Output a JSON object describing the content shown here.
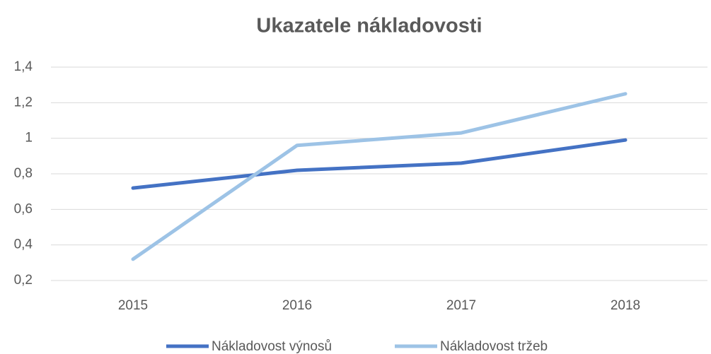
{
  "chart_data": {
    "type": "line",
    "title": "Ukazatele nákladovosti",
    "categories": [
      "2015",
      "2016",
      "2017",
      "2018"
    ],
    "series": [
      {
        "name": "Nákladovost výnosů",
        "color": "#4472c4",
        "values": [
          0.72,
          0.82,
          0.86,
          0.99
        ]
      },
      {
        "name": "Nákladovost tržeb",
        "color": "#9dc3e6",
        "values": [
          0.32,
          0.96,
          1.03,
          1.25
        ]
      }
    ],
    "ylim": [
      0.2,
      1.4
    ],
    "yticks": [
      {
        "value": 0.2,
        "label": "0,2"
      },
      {
        "value": 0.4,
        "label": "0,4"
      },
      {
        "value": 0.6,
        "label": "0,6"
      },
      {
        "value": 0.8,
        "label": "0,8"
      },
      1,
      {
        "value": 1.2,
        "label": "1,2"
      },
      {
        "value": 1.4,
        "label": "1,4"
      }
    ],
    "grid": true,
    "legend": "bottom"
  }
}
